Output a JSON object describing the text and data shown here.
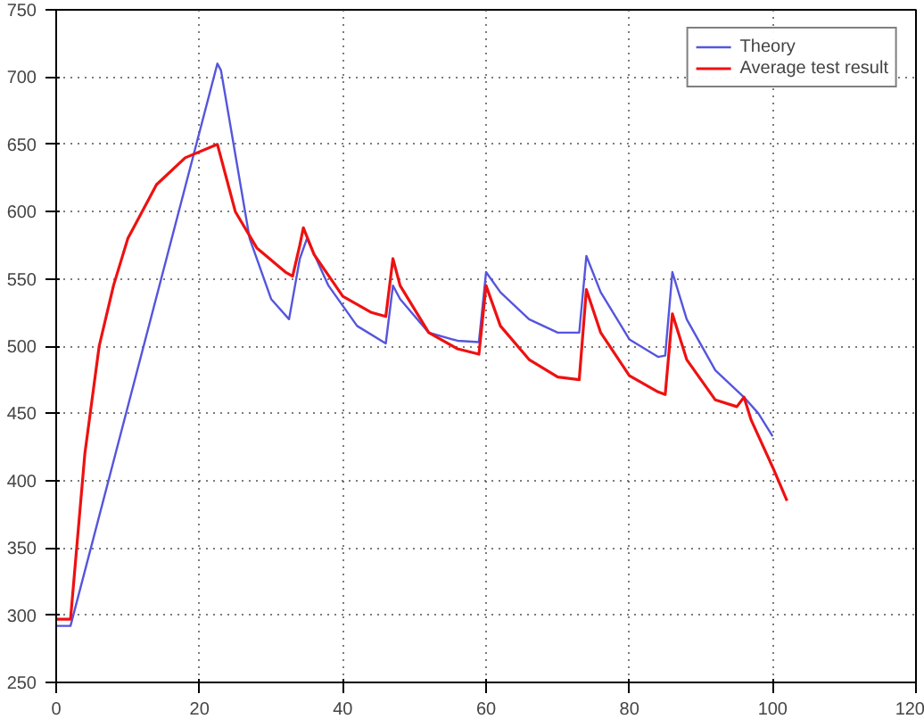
{
  "chart_data": {
    "type": "line",
    "xlim": [
      0,
      120
    ],
    "ylim": [
      250,
      750
    ],
    "xticks": [
      0,
      20,
      40,
      60,
      80,
      100,
      120
    ],
    "yticks": [
      250,
      300,
      350,
      400,
      450,
      500,
      550,
      600,
      650,
      700,
      750
    ],
    "grid": true,
    "legend": "top right",
    "line_style": "solid",
    "marker": "none",
    "series": [
      {
        "name": "Theory",
        "color": "#5555dd",
        "x": [
          0,
          2,
          22.5,
          23,
          27,
          30,
          32.5,
          34,
          35,
          38,
          42,
          46,
          47,
          48,
          52,
          56,
          59,
          60,
          62,
          66,
          70,
          73,
          74,
          76,
          80,
          84,
          85,
          86,
          88,
          92,
          96,
          98,
          100
        ],
        "values": [
          292,
          292,
          710,
          705,
          580,
          535,
          520,
          565,
          580,
          545,
          515,
          502,
          545,
          535,
          510,
          504,
          503,
          555,
          540,
          520,
          510,
          510,
          567,
          540,
          505,
          492,
          493,
          555,
          520,
          482,
          462,
          450,
          433
        ]
      },
      {
        "name": "Average test result",
        "color": "#ee1111",
        "x": [
          0,
          2,
          4,
          6,
          8,
          10,
          14,
          18,
          22.5,
          23,
          25,
          28,
          32,
          33,
          34,
          34.5,
          36,
          40,
          44,
          46,
          47,
          48,
          52,
          56,
          59,
          60,
          62,
          66,
          70,
          73,
          74,
          76,
          80,
          84,
          85,
          86,
          88,
          92,
          95,
          96,
          97,
          100,
          102
        ],
        "values": [
          297,
          297,
          420,
          500,
          545,
          580,
          620,
          640,
          650,
          640,
          600,
          573,
          555,
          552,
          575,
          588,
          568,
          537,
          525,
          522,
          565,
          545,
          510,
          498,
          494,
          545,
          515,
          490,
          477,
          475,
          542,
          510,
          478,
          466,
          464,
          524,
          490,
          460,
          455,
          462,
          445,
          410,
          385
        ]
      }
    ]
  }
}
